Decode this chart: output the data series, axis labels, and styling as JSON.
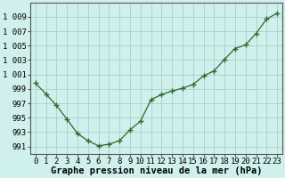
{
  "x": [
    0,
    1,
    2,
    3,
    4,
    5,
    6,
    7,
    8,
    9,
    10,
    11,
    12,
    13,
    14,
    15,
    16,
    17,
    18,
    19,
    20,
    21,
    22,
    23
  ],
  "y": [
    999.8,
    998.3,
    996.7,
    994.8,
    992.8,
    991.8,
    991.1,
    991.3,
    991.8,
    993.3,
    994.5,
    997.5,
    998.2,
    998.7,
    999.1,
    999.6,
    1000.8,
    1001.5,
    1003.1,
    1004.6,
    1005.1,
    1006.7,
    1008.7,
    1009.5
  ],
  "line_color": "#2d6a2d",
  "marker_color": "#2d6a2d",
  "bg_color": "#cff0ec",
  "grid_color": "#aed4ce",
  "xlabel": "Graphe pression niveau de la mer (hPa)",
  "ylim": [
    990,
    1011
  ],
  "xlim": [
    -0.5,
    23.5
  ],
  "yticks": [
    991,
    993,
    995,
    997,
    999,
    1001,
    1003,
    1005,
    1007,
    1009
  ],
  "xticks": [
    0,
    1,
    2,
    3,
    4,
    5,
    6,
    7,
    8,
    9,
    10,
    11,
    12,
    13,
    14,
    15,
    16,
    17,
    18,
    19,
    20,
    21,
    22,
    23
  ],
  "xlabel_fontsize": 7.5,
  "tick_fontsize": 6.5
}
